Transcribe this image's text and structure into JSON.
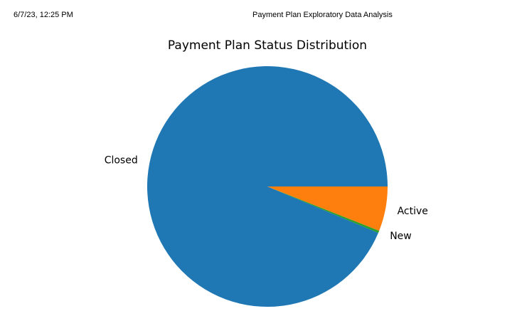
{
  "header": {
    "datetime": "6/7/23, 12:25 PM",
    "doc_title": "Payment Plan Exploratory Data Analysis"
  },
  "chart_data": {
    "type": "pie",
    "title": "Payment Plan Status Distribution",
    "categories": [
      "Closed",
      "New",
      "Active"
    ],
    "values": [
      93.7,
      0.3,
      6.0
    ],
    "colors": [
      "#1f77b4",
      "#2ca02c",
      "#ff7f0e"
    ],
    "start_angle_deg": 0,
    "direction": "counterclockwise",
    "legend": "none"
  }
}
